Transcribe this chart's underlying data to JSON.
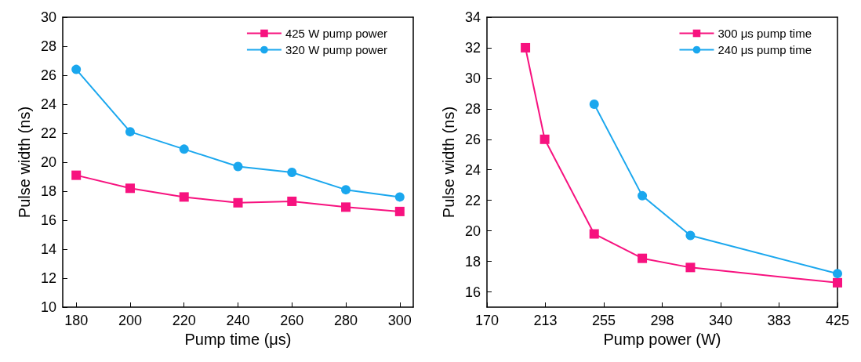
{
  "chart_data": [
    {
      "type": "line",
      "xlabel": "Pump time (μs)",
      "ylabel": "Pulse width (ns)",
      "x": [
        180,
        200,
        220,
        240,
        260,
        280,
        300
      ],
      "xlim": [
        175,
        305
      ],
      "xticks": [
        180,
        200,
        220,
        240,
        260,
        280,
        300
      ],
      "ylim": [
        10,
        30
      ],
      "yticks": [
        10,
        12,
        14,
        16,
        18,
        20,
        22,
        24,
        26,
        28,
        30
      ],
      "grid": false,
      "legend": "top right",
      "series": [
        {
          "name": "425 W pump power",
          "color": "#f7127f",
          "marker": "square",
          "values": [
            19.1,
            18.2,
            17.6,
            17.2,
            17.3,
            16.9,
            16.6
          ]
        },
        {
          "name": "320 W pump power",
          "color": "#1aa7ee",
          "marker": "circle",
          "values": [
            26.4,
            22.1,
            20.9,
            19.7,
            19.3,
            18.1,
            17.6
          ]
        }
      ]
    },
    {
      "type": "line",
      "xlabel": "Pump power (W)",
      "ylabel": "Pulse width (ns)",
      "xlim": [
        170,
        425
      ],
      "xticks": [
        170,
        {
          "value": 212.5,
          "label": "213"
        },
        255,
        {
          "value": 297.5,
          "label": "298"
        },
        340,
        {
          "value": 382.5,
          "label": "383"
        },
        425
      ],
      "ylim": [
        15,
        34
      ],
      "yticks": [
        16,
        18,
        20,
        22,
        24,
        26,
        28,
        30,
        32,
        34
      ],
      "grid": false,
      "legend": "top right",
      "series": [
        {
          "name": "300 μs pump time",
          "color": "#f7127f",
          "marker": "square",
          "x": [
            198,
            212,
            248,
            283,
            318,
            425
          ],
          "values": [
            32,
            26,
            19.8,
            18.2,
            17.6,
            16.6
          ]
        },
        {
          "name": "240 μs pump time",
          "color": "#1aa7ee",
          "marker": "circle",
          "x": [
            248,
            283,
            318,
            425
          ],
          "values": [
            28.3,
            22.3,
            19.7,
            17.2
          ]
        }
      ]
    }
  ]
}
